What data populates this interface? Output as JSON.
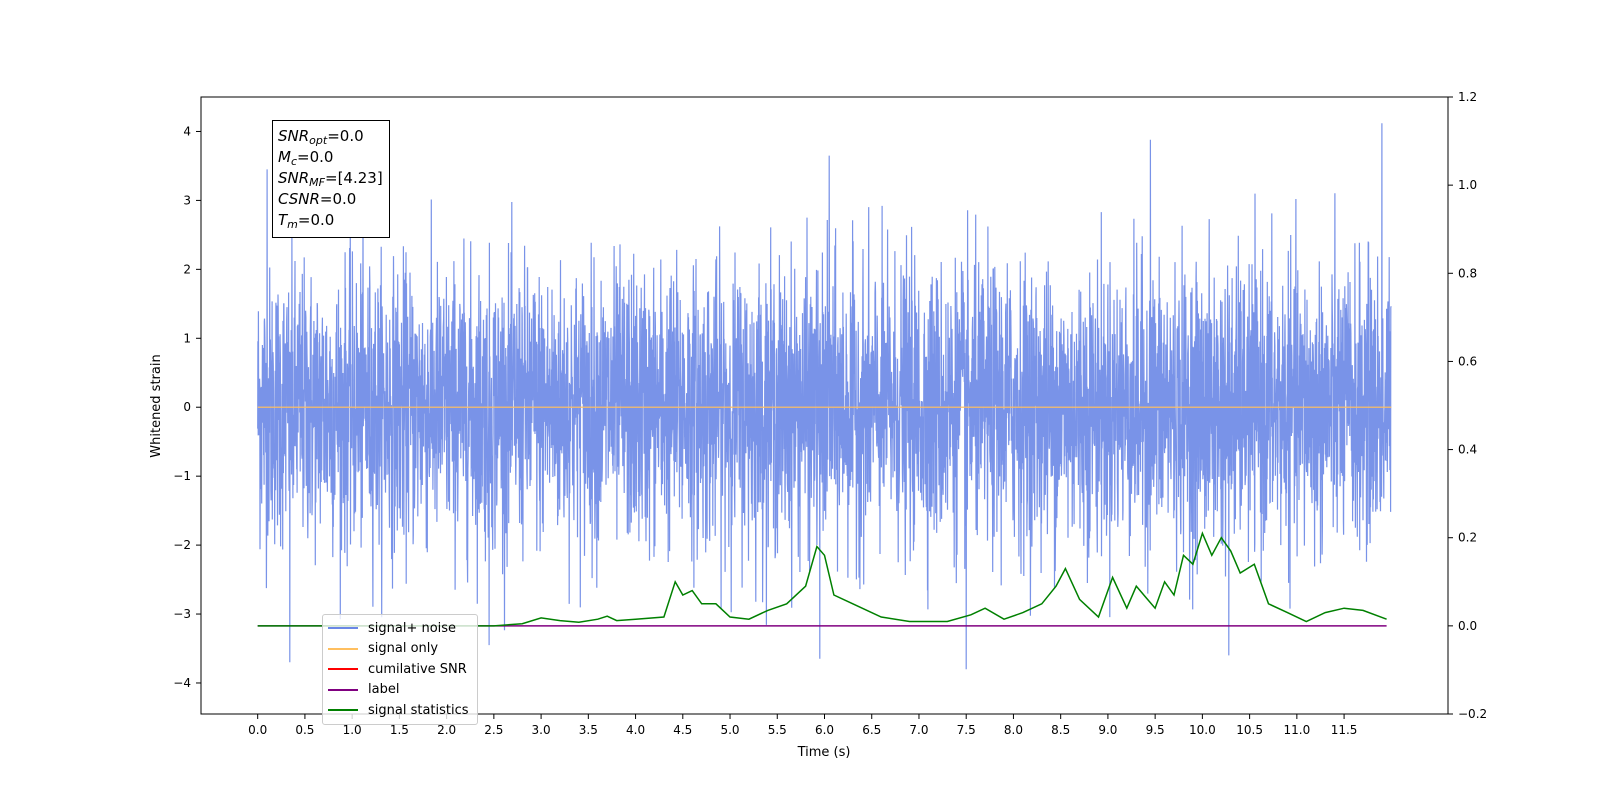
{
  "chart_data": {
    "type": "line",
    "xlabel": "Time (s)",
    "ylabel": "Whitened strain",
    "xlim": [
      -0.6,
      12.6
    ],
    "ylim": [
      -4.45,
      4.5
    ],
    "y2lim": [
      -0.2,
      1.2
    ],
    "xticks": [
      "0.0",
      "0.5",
      "1.0",
      "1.5",
      "2.0",
      "2.5",
      "3.0",
      "3.5",
      "4.0",
      "4.5",
      "5.0",
      "5.5",
      "6.0",
      "6.5",
      "7.0",
      "7.5",
      "8.0",
      "8.5",
      "9.0",
      "9.5",
      "10.0",
      "10.5",
      "11.0",
      "11.5"
    ],
    "yticks": [
      4,
      3,
      2,
      1,
      0,
      -1,
      -2,
      -3,
      -4
    ],
    "y2ticks": [
      "1.2",
      "1.0",
      "0.8",
      "0.6",
      "0.4",
      "0.2",
      "0.0",
      "−0.2"
    ],
    "series": [
      {
        "name": "signal+ noise",
        "axis": "left",
        "color": "#6a87e6",
        "note_peaks": [
          {
            "x": 0.34,
            "y": -3.7
          },
          {
            "x": 0.1,
            "y": 3.45
          },
          {
            "x": 5.95,
            "y": -3.65
          },
          {
            "x": 6.05,
            "y": 3.65
          },
          {
            "x": 7.5,
            "y": -3.8
          },
          {
            "x": 9.45,
            "y": 3.88
          },
          {
            "x": 11.9,
            "y": 4.12
          },
          {
            "x": 10.28,
            "y": -3.6
          },
          {
            "x": 2.45,
            "y": -3.45
          }
        ]
      },
      {
        "name": "signal only",
        "axis": "left",
        "color": "#ffbf5f",
        "x": [
          0.0,
          12.0
        ],
        "y": [
          0.0,
          0.0
        ]
      },
      {
        "name": "cumilative SNR",
        "axis": "right",
        "color": "#ff0000",
        "x": [],
        "y": []
      },
      {
        "name": "label",
        "axis": "right",
        "color": "#800080",
        "x": [
          0.0,
          11.95
        ],
        "y": [
          0.0,
          0.0
        ]
      },
      {
        "name": "signal statistics",
        "axis": "right",
        "color": "#008000",
        "x": [
          0.0,
          2.5,
          2.8,
          3.0,
          3.2,
          3.4,
          3.6,
          3.7,
          3.8,
          4.0,
          4.3,
          4.42,
          4.5,
          4.6,
          4.7,
          4.85,
          5.0,
          5.2,
          5.4,
          5.6,
          5.8,
          5.92,
          6.0,
          6.1,
          6.3,
          6.6,
          6.9,
          7.3,
          7.55,
          7.7,
          7.9,
          8.1,
          8.3,
          8.45,
          8.55,
          8.7,
          8.9,
          9.05,
          9.2,
          9.3,
          9.5,
          9.6,
          9.7,
          9.8,
          9.9,
          10.0,
          10.1,
          10.2,
          10.3,
          10.4,
          10.55,
          10.7,
          10.9,
          11.1,
          11.3,
          11.5,
          11.7,
          11.95
        ],
        "y": [
          0.0,
          0.0,
          0.005,
          0.018,
          0.012,
          0.008,
          0.015,
          0.022,
          0.012,
          0.015,
          0.02,
          0.1,
          0.07,
          0.08,
          0.05,
          0.05,
          0.02,
          0.015,
          0.035,
          0.05,
          0.09,
          0.18,
          0.16,
          0.07,
          0.05,
          0.02,
          0.01,
          0.01,
          0.025,
          0.04,
          0.015,
          0.03,
          0.05,
          0.09,
          0.13,
          0.06,
          0.02,
          0.11,
          0.04,
          0.09,
          0.04,
          0.1,
          0.07,
          0.16,
          0.14,
          0.21,
          0.16,
          0.2,
          0.17,
          0.12,
          0.14,
          0.05,
          0.03,
          0.01,
          0.03,
          0.04,
          0.035,
          0.015
        ]
      }
    ],
    "legend": {
      "placement": "lower-left"
    },
    "grid": false
  },
  "stats_box": {
    "snr_opt": {
      "base": "SNR",
      "sub": "opt",
      "value": "=0.0"
    },
    "mc": {
      "base": "M",
      "sub": "c",
      "value": "=0.0"
    },
    "snr_mf": {
      "base": "SNR",
      "sub": "MF",
      "value": "=[4.23]"
    },
    "csnr": {
      "base": "CSNR",
      "value": "=0.0"
    },
    "tm": {
      "base": "T",
      "sub": "m",
      "value": "=0.0"
    }
  },
  "legend": {
    "items": [
      {
        "label": "signal+ noise",
        "color": "#6a87e6"
      },
      {
        "label": "signal only",
        "color": "#ffbf5f"
      },
      {
        "label": "cumilative SNR",
        "color": "#ff0000"
      },
      {
        "label": "label",
        "color": "#800080"
      },
      {
        "label": "signal statistics",
        "color": "#008000"
      }
    ]
  }
}
